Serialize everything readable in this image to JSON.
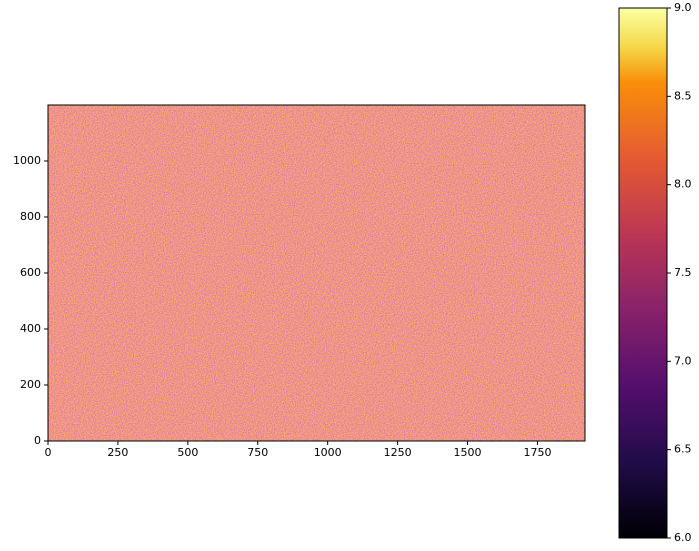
{
  "chart_data": {
    "type": "heatmap",
    "colormap": "inferno",
    "xlim": [
      0,
      1920
    ],
    "ylim": [
      0,
      1200
    ],
    "xticks": [
      0,
      250,
      500,
      750,
      1000,
      1250,
      1500,
      1750
    ],
    "yticks": [
      0,
      200,
      400,
      600,
      800,
      1000
    ],
    "colorbar": {
      "lim": [
        6,
        9
      ],
      "ticks": [
        {
          "value": 6,
          "label": "6.0"
        },
        {
          "value": 6.5,
          "label": "6.5"
        },
        {
          "value": 7,
          "label": "7.0"
        },
        {
          "value": 7.5,
          "label": "7.5"
        },
        {
          "value": 8,
          "label": "8.0"
        },
        {
          "value": 8.5,
          "label": "8.5"
        },
        {
          "value": 9,
          "label": "9.0"
        }
      ]
    }
  }
}
